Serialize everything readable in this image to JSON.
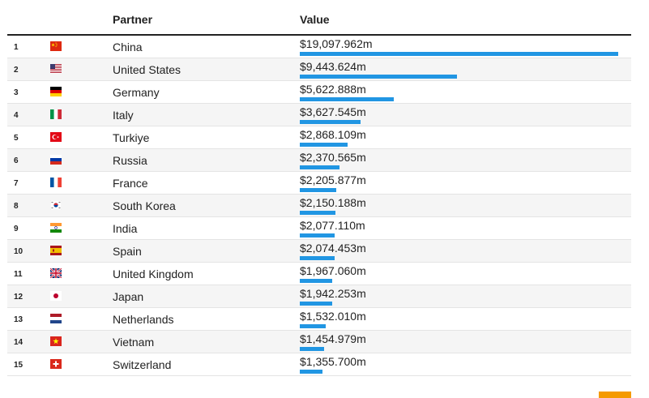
{
  "header": {
    "partner": "Partner",
    "value": "Value"
  },
  "chart_data": {
    "type": "bar",
    "orientation": "horizontal",
    "categories": [
      "China",
      "United States",
      "Germany",
      "Italy",
      "Turkiye",
      "Russia",
      "France",
      "South Korea",
      "India",
      "Spain",
      "United Kingdom",
      "Japan",
      "Netherlands",
      "Vietnam",
      "Switzerland"
    ],
    "values": [
      19097.962,
      9443.624,
      5622.888,
      3627.545,
      2868.109,
      2370.565,
      2205.877,
      2150.188,
      2077.11,
      2074.453,
      1967.06,
      1942.253,
      1532.01,
      1454.979,
      1355.7
    ],
    "value_labels": [
      "$19,097.962m",
      "$9,443.624m",
      "$5,622.888m",
      "$3,627.545m",
      "$2,868.109m",
      "$2,370.565m",
      "$2,205.877m",
      "$2,150.188m",
      "$2,077.110m",
      "$2,074.453m",
      "$1,967.060m",
      "$1,942.253m",
      "$1,532.010m",
      "$1,454.979m",
      "$1,355.700m"
    ],
    "ranks": [
      "1",
      "2",
      "3",
      "4",
      "5",
      "6",
      "7",
      "8",
      "9",
      "10",
      "11",
      "12",
      "13",
      "14",
      "15"
    ],
    "flag_icons": [
      "china-flag-icon",
      "united-states-flag-icon",
      "germany-flag-icon",
      "italy-flag-icon",
      "turkiye-flag-icon",
      "russia-flag-icon",
      "france-flag-icon",
      "south-korea-flag-icon",
      "india-flag-icon",
      "spain-flag-icon",
      "united-kingdom-flag-icon",
      "japan-flag-icon",
      "netherlands-flag-icon",
      "vietnam-flag-icon",
      "switzerland-flag-icon"
    ],
    "bar_color": "#2196e3",
    "xlim": [
      0,
      19097.962
    ],
    "grid": false
  },
  "colors": {
    "bar": "#2196e3",
    "alt_row": "#f5f5f5",
    "corner": "#f59a00"
  }
}
